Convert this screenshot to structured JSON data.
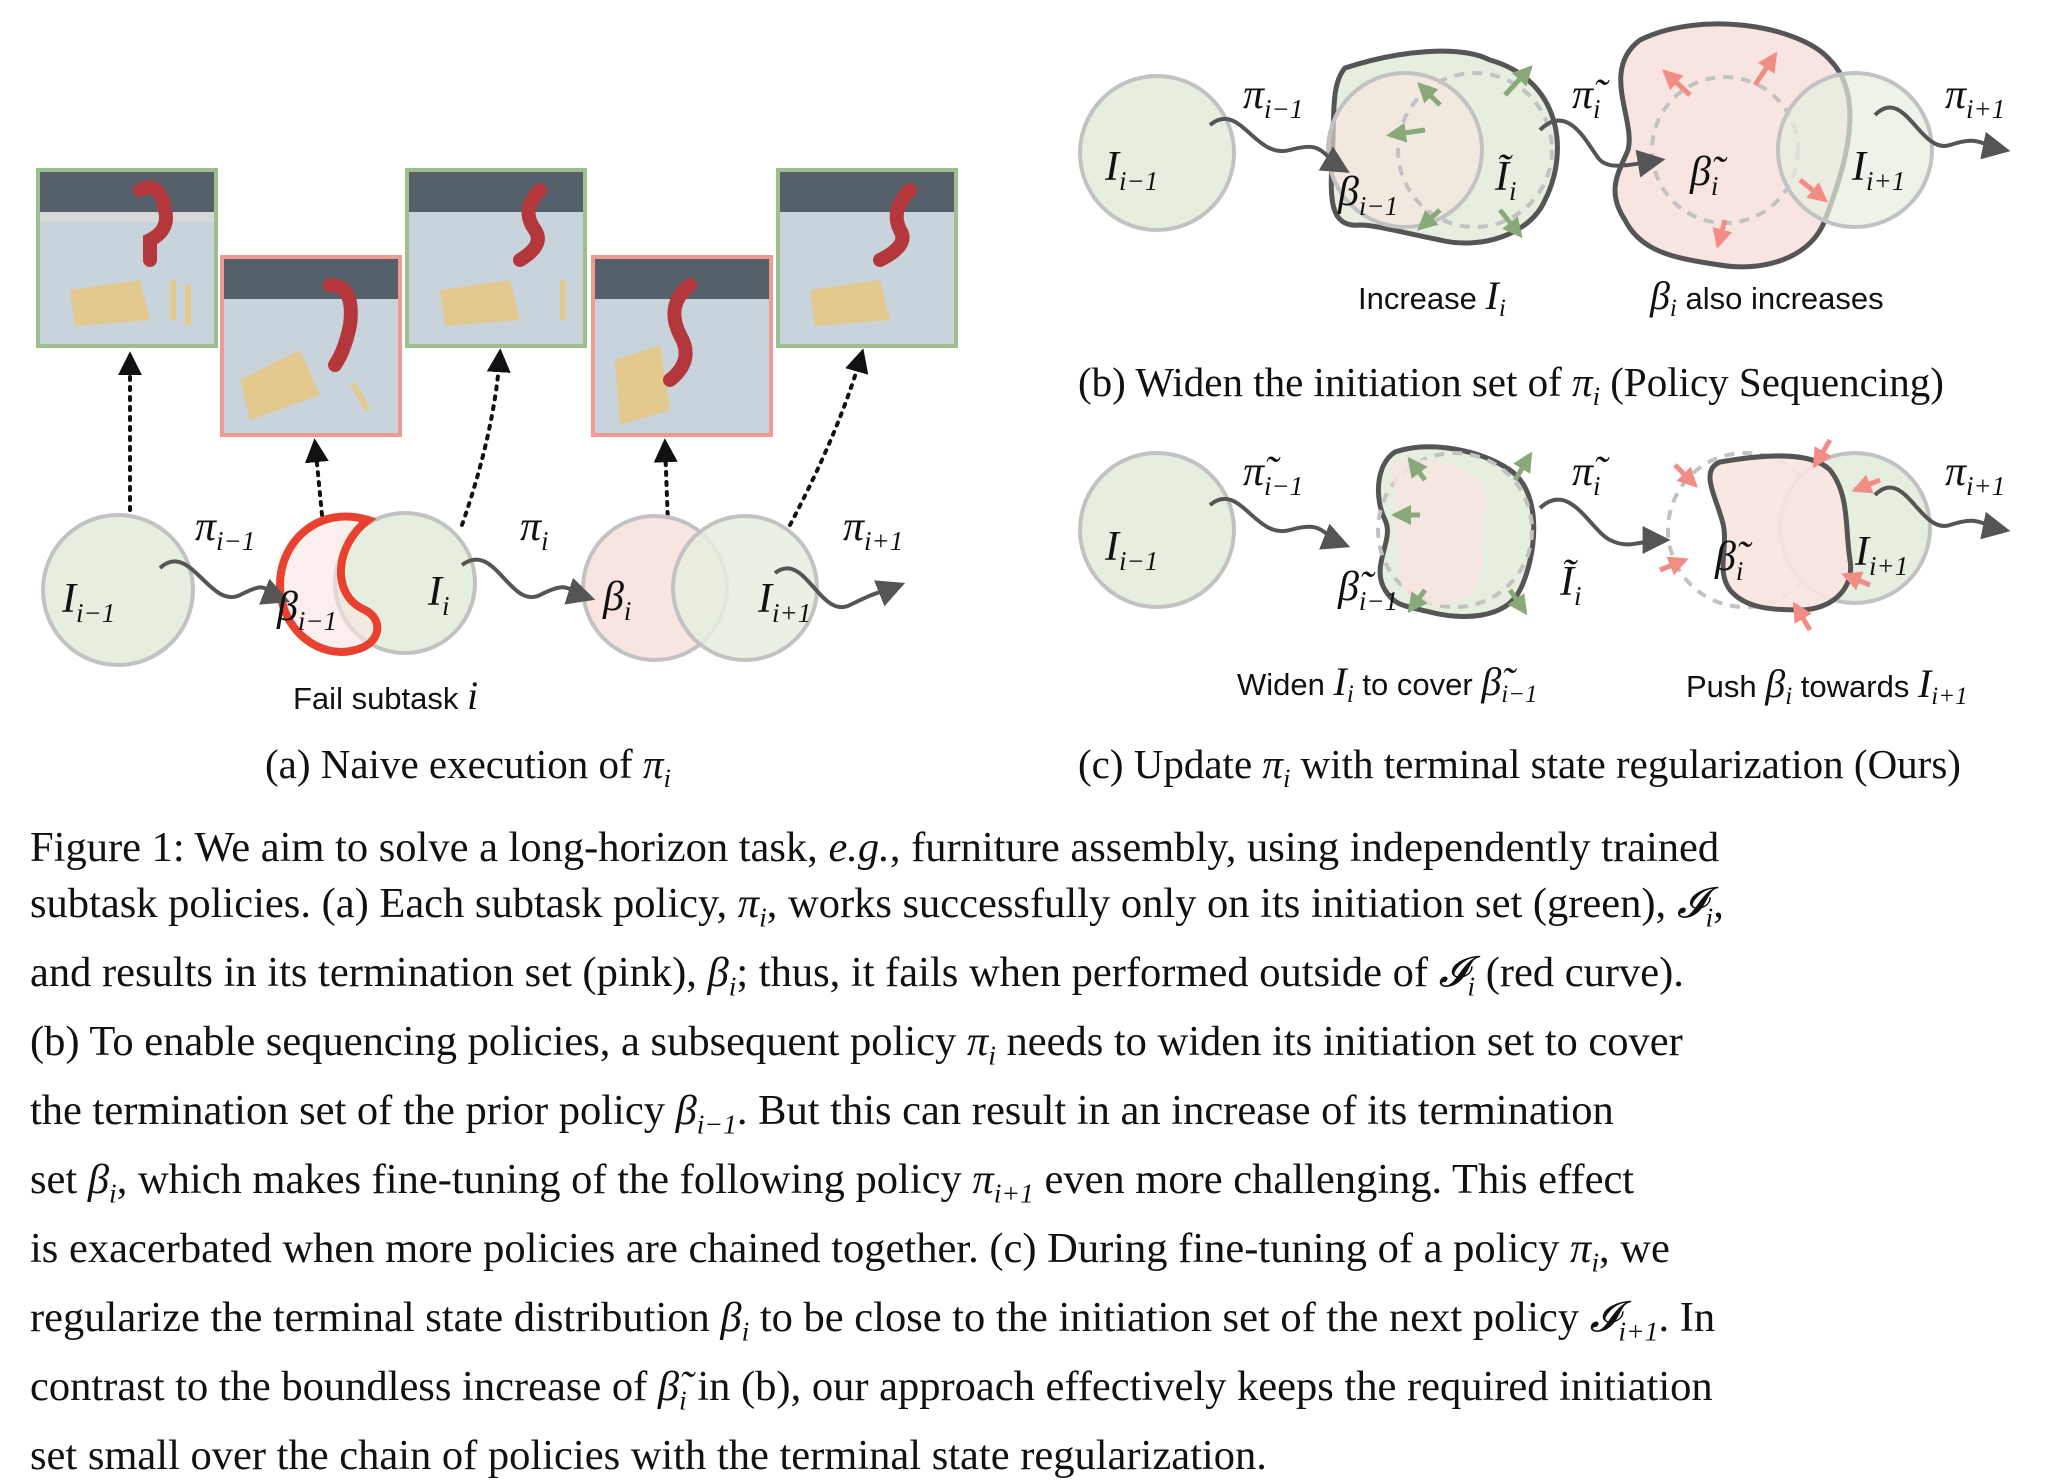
{
  "panel_a": {
    "subtitle_prefix": "(a) Naive execution of",
    "subtitle_math": "π",
    "subtitle_sub": "i",
    "fail_label_text": "Fail subtask",
    "fail_label_math": "i",
    "sets": [
      {
        "name": "I",
        "sub": "i−1"
      },
      {
        "name": "β",
        "sub": "i−1"
      },
      {
        "name": "I",
        "sub": "i"
      },
      {
        "name": "β",
        "sub": "i"
      },
      {
        "name": "I",
        "sub": "i+1"
      }
    ],
    "arrows": [
      {
        "name": "π",
        "sub": "i−1"
      },
      {
        "name": "π",
        "sub": "i"
      },
      {
        "name": "π",
        "sub": "i+1"
      }
    ],
    "frames": [
      "success",
      "fail",
      "success",
      "fail",
      "success"
    ]
  },
  "panel_b": {
    "subtitle_prefix": "(b) Widen the initiation set of",
    "subtitle_math": "π",
    "subtitle_sub": "i",
    "subtitle_suffix": "(Policy Sequencing)",
    "label_left_text": "Increase",
    "label_left_math": "I",
    "label_left_sub": "i",
    "label_right_math": "β",
    "label_right_sub": "i",
    "label_right_text": "also increases",
    "sets": [
      {
        "name": "I",
        "sub": "i−1"
      },
      {
        "name": "β",
        "sub": "i−1"
      },
      {
        "name": "Ĩ",
        "sub": "i"
      },
      {
        "name": "β̃",
        "sub": "i"
      },
      {
        "name": "I",
        "sub": "i+1"
      }
    ],
    "arrows": [
      {
        "name": "π",
        "sub": "i−1"
      },
      {
        "name": "π̃",
        "sub": "i"
      },
      {
        "name": "π",
        "sub": "i+1"
      }
    ]
  },
  "panel_c": {
    "subtitle_prefix": "(c) Update",
    "subtitle_math": "π",
    "subtitle_sub": "i",
    "subtitle_suffix": "with terminal state regularization (Ours)",
    "label_left_text": "Widen",
    "label_left_math": "I",
    "label_left_sub": "i",
    "label_left_mid": "to cover",
    "label_left_math2": "β̃",
    "label_left_sub2": "i−1",
    "label_right_text": "Push",
    "label_right_math": "β",
    "label_right_sub": "i",
    "label_right_mid": "towards",
    "label_right_math2": "I",
    "label_right_sub2": "i+1",
    "sets": [
      {
        "name": "I",
        "sub": "i−1"
      },
      {
        "name": "β̃",
        "sub": "i−1"
      },
      {
        "name": "Ĩ",
        "sub": "i"
      },
      {
        "name": "β̃",
        "sub": "i"
      },
      {
        "name": "I",
        "sub": "i+1"
      }
    ],
    "arrows": [
      {
        "name": "π̃",
        "sub": "i−1"
      },
      {
        "name": "π̃",
        "sub": "i"
      },
      {
        "name": "π",
        "sub": "i+1"
      }
    ]
  },
  "caption": {
    "lines": [
      [
        "Figure 1: We aim to solve a long-horizon task, ",
        {
          "i": "e.g."
        },
        ", furniture assembly, using independently trained"
      ],
      [
        "subtask policies. (a) Each subtask policy, ",
        {
          "m": "π",
          "s": "i"
        },
        ", works successfully only on its initiation set (green), ",
        {
          "m": "𝓘",
          "s": "i"
        },
        ","
      ],
      [
        "and results in its termination set (pink), ",
        {
          "m": "β",
          "s": "i"
        },
        "; thus, it fails when performed outside of ",
        {
          "m": "𝓘",
          "s": "i"
        },
        " (red curve)."
      ],
      [
        "(b) To enable sequencing policies, a subsequent policy ",
        {
          "m": "π",
          "s": "i"
        },
        " needs to widen its initiation set to cover"
      ],
      [
        "the termination set of the prior policy ",
        {
          "m": "β",
          "s": "i−1"
        },
        ".  But this can result in an increase of its termination"
      ],
      [
        "set ",
        {
          "m": "β",
          "s": "i"
        },
        ", which makes fine-tuning of the following policy ",
        {
          "m": "π",
          "s": "i+1"
        },
        " even more challenging.  This effect"
      ],
      [
        "is exacerbated when more policies are chained together.  (c) During fine-tuning of a policy ",
        {
          "m": "π",
          "s": "i"
        },
        ", we"
      ],
      [
        "regularize the terminal state distribution ",
        {
          "m": "β",
          "s": "i"
        },
        " to be close to the initiation set of the next policy ",
        {
          "m": "𝓘",
          "s": "i+1"
        },
        ".  In"
      ],
      [
        "contrast to the boundless increase of ",
        {
          "m": "β̃",
          "s": "i"
        },
        " in (b), our approach effectively keeps the required initiation"
      ],
      [
        "set small over the chain of policies with the terminal state regularization."
      ]
    ]
  },
  "colors": {
    "green_fill": "#e6eedf",
    "green_stroke": "#c2c2c2",
    "pink_fill": "#f8e4e1",
    "dark_stroke": "#555555",
    "red_curve": "#e8412f",
    "green_arrow": "#8aa97a",
    "pink_arrow": "#f28d86",
    "frame_green": "#9cbf8c",
    "frame_red": "#ef9a93"
  }
}
